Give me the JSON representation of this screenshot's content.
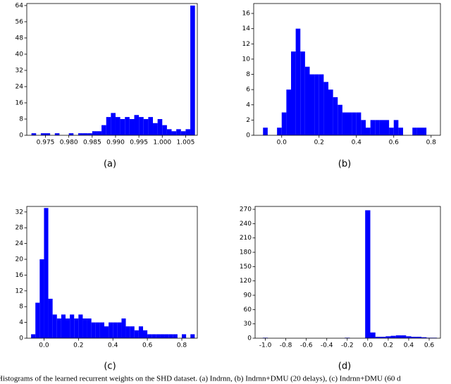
{
  "chart_data": [
    {
      "type": "histogram",
      "label": "(a)",
      "color": "#0000ff",
      "bins": [
        0.971,
        0.972,
        0.973,
        0.974,
        0.975,
        0.976,
        0.977,
        0.978,
        0.979,
        0.98,
        0.981,
        0.982,
        0.983,
        0.984,
        0.985,
        0.986,
        0.987,
        0.988,
        0.989,
        0.99,
        0.991,
        0.992,
        0.993,
        0.994,
        0.995,
        0.996,
        0.997,
        0.998,
        0.999,
        1.0,
        1.001,
        1.002,
        1.003,
        1.004,
        1.005,
        1.006,
        1.007
      ],
      "counts": [
        0,
        1,
        0,
        1,
        1,
        0,
        1,
        0,
        0,
        1,
        0,
        1,
        1,
        1,
        2,
        2,
        5,
        9,
        11,
        9,
        8,
        9,
        8,
        10,
        9,
        8,
        9,
        6,
        8,
        5,
        3,
        2,
        3,
        2,
        3,
        64
      ],
      "xlim": [
        0.971,
        1.0075
      ],
      "ylim": [
        0,
        65
      ],
      "xticks": [
        0.975,
        {
          "value": 0.98,
          "label": "0.980"
        },
        0.985,
        {
          "value": 0.99,
          "label": "0.990"
        },
        0.995,
        {
          "value": 1,
          "label": "1.000"
        },
        1.005
      ],
      "yticks": [
        0,
        8,
        16,
        24,
        32,
        40,
        48,
        56,
        64
      ]
    },
    {
      "type": "histogram",
      "label": "(b)",
      "color": "#0000ff",
      "bins": [
        -0.1,
        -0.075,
        -0.05,
        -0.025,
        0,
        0.025,
        0.05,
        0.075,
        0.1,
        0.125,
        0.15,
        0.175,
        0.2,
        0.225,
        0.25,
        0.275,
        0.3,
        0.325,
        0.35,
        0.375,
        0.4,
        0.425,
        0.45,
        0.475,
        0.5,
        0.525,
        0.55,
        0.575,
        0.6,
        0.625,
        0.65,
        0.675,
        0.7,
        0.725,
        0.75,
        0.775,
        0.8
      ],
      "counts": [
        1,
        0,
        0,
        1,
        3,
        6,
        11,
        14,
        11,
        9,
        8,
        8,
        8,
        7,
        6,
        5,
        4,
        3,
        3,
        3,
        3,
        2,
        1,
        2,
        2,
        2,
        2,
        1,
        2,
        1,
        0,
        0,
        1,
        1,
        1,
        0
      ],
      "xlim": [
        -0.15,
        0.85
      ],
      "ylim": [
        0,
        17.3
      ],
      "xticks": [
        {
          "value": 0,
          "label": "0.0"
        },
        0.2,
        0.4,
        0.6,
        0.8
      ],
      "yticks": [
        0,
        2,
        4,
        6,
        8,
        10,
        12,
        14,
        16
      ]
    },
    {
      "type": "histogram",
      "label": "(c)",
      "color": "#0000ff",
      "bins": [
        -0.075,
        -0.05,
        -0.025,
        0,
        0.025,
        0.05,
        0.075,
        0.1,
        0.125,
        0.15,
        0.175,
        0.2,
        0.225,
        0.25,
        0.275,
        0.3,
        0.325,
        0.35,
        0.375,
        0.4,
        0.425,
        0.45,
        0.475,
        0.5,
        0.525,
        0.55,
        0.575,
        0.6,
        0.625,
        0.65,
        0.675,
        0.7,
        0.725,
        0.75,
        0.775,
        0.8,
        0.825,
        0.85,
        0.875
      ],
      "counts": [
        1,
        9,
        20,
        33,
        10,
        6,
        5,
        6,
        5,
        6,
        5,
        6,
        5,
        5,
        4,
        4,
        4,
        3,
        4,
        4,
        4,
        5,
        3,
        3,
        2,
        3,
        2,
        1,
        1,
        1,
        1,
        1,
        1,
        1,
        0,
        1,
        0,
        1
      ],
      "xlim": [
        -0.1,
        0.89
      ],
      "ylim": [
        0,
        33.4
      ],
      "xticks": [
        {
          "value": 0,
          "label": "0.0"
        },
        0.2,
        0.4,
        0.6,
        0.8
      ],
      "yticks": [
        0,
        4,
        8,
        12,
        16,
        20,
        24,
        28,
        32
      ]
    },
    {
      "type": "histogram",
      "label": "(d)",
      "color": "#0000ff",
      "bins": [
        -1.025,
        -0.975,
        -0.925,
        -0.875,
        -0.825,
        -0.775,
        -0.725,
        -0.675,
        -0.625,
        -0.575,
        -0.525,
        -0.475,
        -0.425,
        -0.375,
        -0.325,
        -0.275,
        -0.225,
        -0.175,
        -0.125,
        -0.075,
        -0.025,
        0.025,
        0.075,
        0.125,
        0.175,
        0.225,
        0.275,
        0.325,
        0.375,
        0.425,
        0.475,
        0.525,
        0.575,
        0.625,
        0.675
      ],
      "counts": [
        1,
        0,
        0,
        0,
        0,
        0,
        0,
        0,
        0,
        0,
        0,
        0,
        0,
        0,
        0,
        0,
        1,
        0,
        0,
        0,
        268,
        12,
        3,
        3,
        4,
        5,
        6,
        6,
        4,
        3,
        3,
        2,
        1,
        1
      ],
      "xlim": [
        -1.1,
        0.71
      ],
      "ylim": [
        0,
        276
      ],
      "xticks": [
        {
          "value": -1,
          "label": "-1.0"
        },
        -0.8,
        -0.6,
        -0.4,
        -0.2,
        {
          "value": 0,
          "label": "0.0"
        },
        0.2,
        0.4,
        0.6
      ],
      "yticks": [
        0,
        30,
        60,
        90,
        120,
        150,
        180,
        210,
        240,
        270
      ]
    }
  ],
  "caption": "Histograms of the learned recurrent weights on the SHD dataset. (a) Indrnn, (b) Indrnn+DMU (20 delays), (c) Indrnn+DMU (60 d"
}
